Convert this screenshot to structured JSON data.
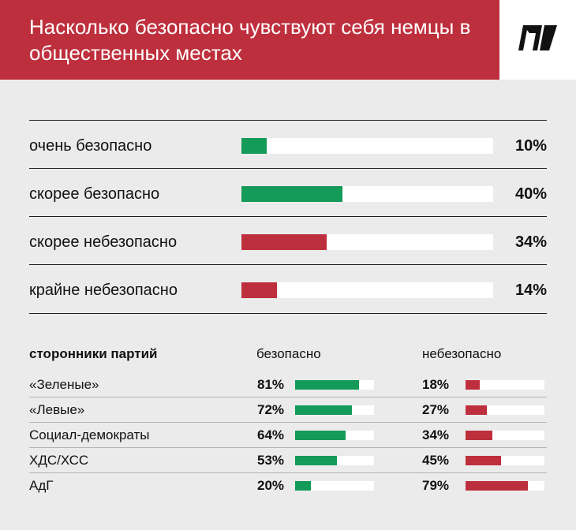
{
  "title": "Насколько безопасно чувствуют себя немцы в общественных местах",
  "colors": {
    "header": "#be2f3d",
    "safe": "#149a59",
    "unsafe": "#be2f3d",
    "background": "#ebebeb"
  },
  "logo": {
    "icon": "brand-logo-icon"
  },
  "chart_data": [
    {
      "type": "bar",
      "title": "Насколько безопасно чувствуют себя немцы в общественных местах",
      "categories": [
        "очень безопасно",
        "скорее безопасно",
        "скорее небезопасно",
        "крайне небезопасно"
      ],
      "values": [
        10,
        40,
        34,
        14
      ],
      "labels": [
        "10%",
        "40%",
        "34%",
        "14%"
      ],
      "bar_colors": [
        "#149a59",
        "#149a59",
        "#be2f3d",
        "#be2f3d"
      ],
      "ylim": [
        0,
        100
      ]
    },
    {
      "type": "bar",
      "title": "сторонники партий",
      "categories": [
        "«Зеленые»",
        "«Левые»",
        "Социал-демократы",
        "ХДС/ХСС",
        "АдГ"
      ],
      "series": [
        {
          "name": "безопасно",
          "values": [
            81,
            72,
            64,
            53,
            20
          ],
          "labels": [
            "81%",
            "72%",
            "64%",
            "53%",
            "20%"
          ],
          "color": "#149a59"
        },
        {
          "name": "небезопасно",
          "values": [
            18,
            27,
            34,
            45,
            79
          ],
          "labels": [
            "18%",
            "27%",
            "34%",
            "45%",
            "79%"
          ],
          "color": "#be2f3d"
        }
      ],
      "ylim": [
        0,
        100
      ]
    }
  ]
}
